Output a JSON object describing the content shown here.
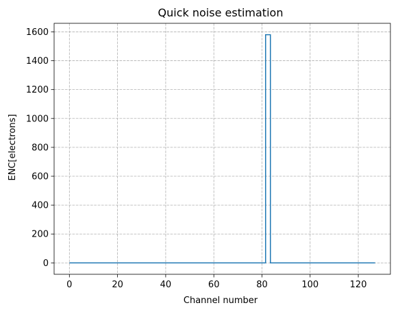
{
  "chart_data": {
    "type": "line",
    "drawstyle": "steps-mid",
    "title": "Quick noise estimation",
    "xlabel": "Channel number",
    "ylabel": "ENC[electrons]",
    "xlim": [
      -6.35,
      133.35
    ],
    "ylim": [
      -79,
      1659
    ],
    "xticks": [
      0,
      20,
      40,
      60,
      80,
      100,
      120
    ],
    "yticks": [
      0,
      200,
      400,
      600,
      800,
      1000,
      1200,
      1400,
      1600
    ],
    "grid": true,
    "legend": "none",
    "series": [
      {
        "color": "#1f77b4",
        "x": [
          0,
          81,
          82,
          83,
          84,
          127
        ],
        "y": [
          0,
          0,
          1580,
          1580,
          0,
          0
        ]
      }
    ]
  }
}
